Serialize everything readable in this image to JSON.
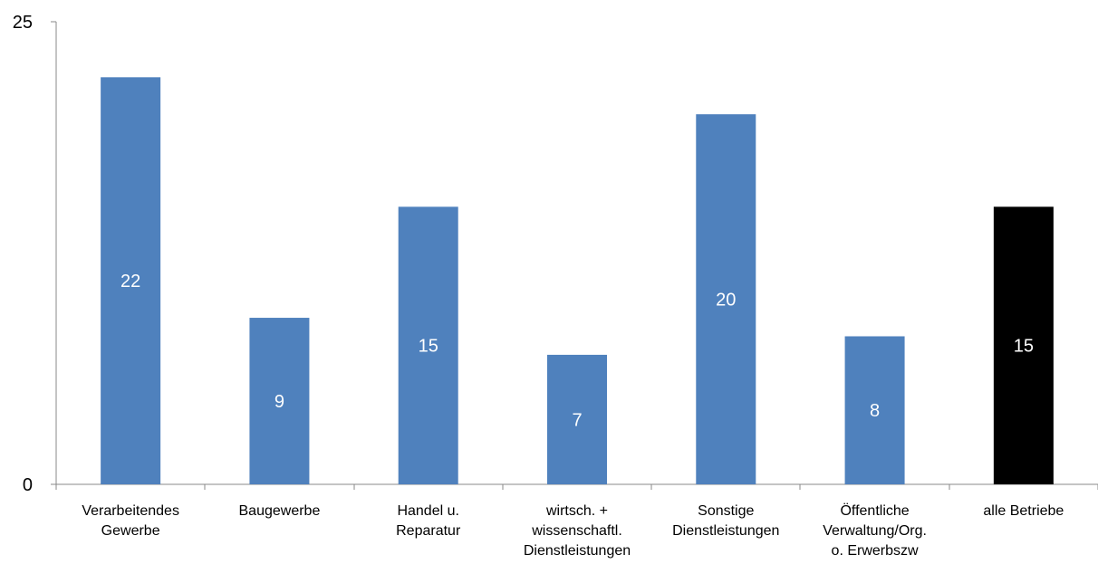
{
  "chart_data": {
    "type": "bar",
    "categories": [
      [
        "Verarbeitendes",
        "Gewerbe"
      ],
      [
        "Baugewerbe"
      ],
      [
        "Handel u.",
        "Reparatur"
      ],
      [
        "wirtsch. +",
        "wissenschaftl.",
        "Dienstleistungen"
      ],
      [
        "Sonstige",
        "Dienstleistungen"
      ],
      [
        "Öffentliche",
        "Verwaltung/Org.",
        "o. Erwerbszw"
      ],
      [
        "alle Betriebe"
      ]
    ],
    "values": [
      22,
      9,
      15,
      7,
      20,
      8,
      15
    ],
    "data_labels": [
      "22",
      "9",
      "15",
      "7",
      "20",
      "8",
      "15"
    ],
    "bar_colors": [
      "#4F81BD",
      "#4F81BD",
      "#4F81BD",
      "#4F81BD",
      "#4F81BD",
      "#4F81BD",
      "#000000"
    ],
    "ylim": [
      0,
      25
    ],
    "yticks": [
      "0",
      "25"
    ],
    "title": "",
    "xlabel": "",
    "ylabel": "",
    "grid": false,
    "legend": "none"
  }
}
